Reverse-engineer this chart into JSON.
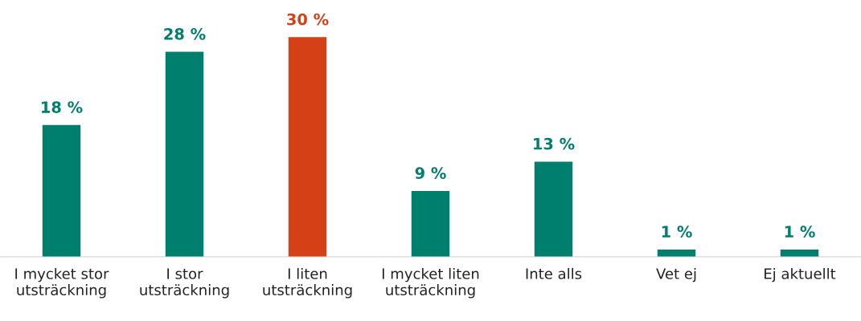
{
  "chart_data": {
    "type": "bar",
    "categories": [
      "I mycket stor\nutsträckning",
      "I stor\nutsträckning",
      "I liten\nutsträckning",
      "I mycket liten\nutsträckning",
      "Inte alls",
      "Vet ej",
      "Ej aktuellt"
    ],
    "values": [
      18,
      28,
      30,
      9,
      13,
      1,
      1
    ],
    "colors": [
      "#007f6e",
      "#007f6e",
      "#d64016",
      "#007f6e",
      "#007f6e",
      "#007f6e",
      "#007f6e"
    ],
    "value_labels": [
      "18 %",
      "28 %",
      "30 %",
      "9 %",
      "13 %",
      "1 %",
      "1 %"
    ],
    "grid": false,
    "legend": false
  }
}
